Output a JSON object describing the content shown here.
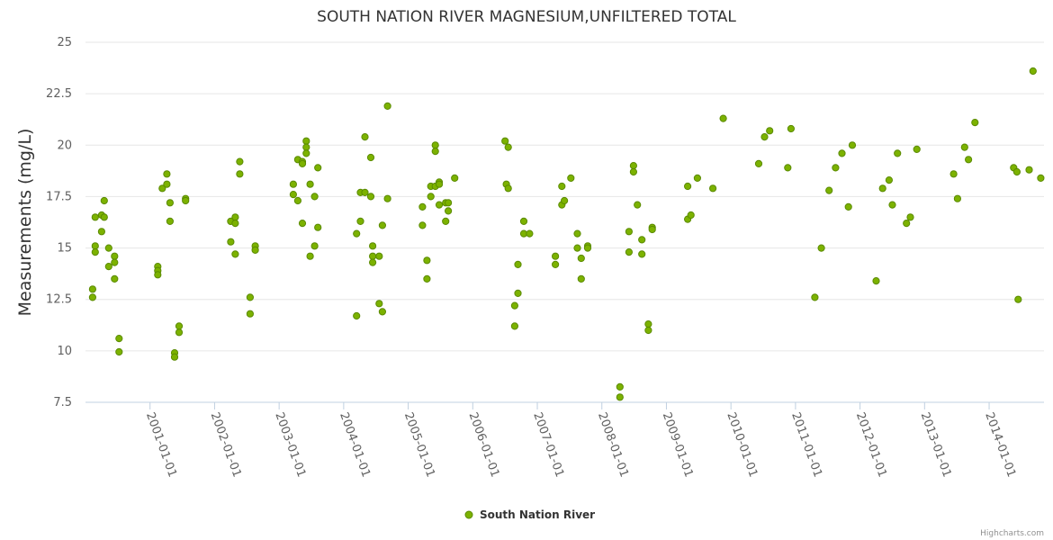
{
  "chart_data": {
    "type": "scatter",
    "title": "SOUTH NATION RIVER MAGNESIUM,UNFILTERED TOTAL",
    "xlabel": "",
    "ylabel": "Measurements (mg/L)",
    "ylim": [
      7.5,
      25
    ],
    "y_ticks": [
      {
        "value": 7.5,
        "label": "7.5"
      },
      {
        "value": 10,
        "label": "10"
      },
      {
        "value": 12.5,
        "label": "12.5"
      },
      {
        "value": 15,
        "label": "15"
      },
      {
        "value": 17.5,
        "label": "17.5"
      },
      {
        "value": 20,
        "label": "20"
      },
      {
        "value": 22.5,
        "label": "22.5"
      },
      {
        "value": 25,
        "label": "25"
      }
    ],
    "xlim": [
      2000.0,
      2014.85
    ],
    "x_ticks": [
      {
        "value": 2001.0,
        "label": "2001-01-01"
      },
      {
        "value": 2002.0,
        "label": "2002-01-01"
      },
      {
        "value": 2003.0,
        "label": "2003-01-01"
      },
      {
        "value": 2004.0,
        "label": "2004-01-01"
      },
      {
        "value": 2005.0,
        "label": "2005-01-01"
      },
      {
        "value": 2006.0,
        "label": "2006-01-01"
      },
      {
        "value": 2007.0,
        "label": "2007-01-01"
      },
      {
        "value": 2008.0,
        "label": "2008-01-01"
      },
      {
        "value": 2009.0,
        "label": "2009-01-01"
      },
      {
        "value": 2010.0,
        "label": "2010-01-01"
      },
      {
        "value": 2011.0,
        "label": "2011-01-01"
      },
      {
        "value": 2012.0,
        "label": "2012-01-01"
      },
      {
        "value": 2013.0,
        "label": "2013-01-01"
      },
      {
        "value": 2014.0,
        "label": "2014-01-01"
      }
    ],
    "grid": true,
    "legend_position": "bottom-center",
    "series": [
      {
        "name": "South Nation River",
        "color": "#7cb200",
        "stroke": "#5a8a00",
        "points": [
          [
            2000.11,
            13.0
          ],
          [
            2000.11,
            12.6
          ],
          [
            2000.15,
            16.5
          ],
          [
            2000.15,
            15.1
          ],
          [
            2000.15,
            14.8
          ],
          [
            2000.25,
            16.6
          ],
          [
            2000.25,
            15.8
          ],
          [
            2000.29,
            16.5
          ],
          [
            2000.29,
            17.3
          ],
          [
            2000.36,
            15.0
          ],
          [
            2000.36,
            14.1
          ],
          [
            2000.45,
            14.6
          ],
          [
            2000.45,
            14.3
          ],
          [
            2000.45,
            13.5
          ],
          [
            2000.52,
            10.6
          ],
          [
            2000.52,
            9.95
          ],
          [
            2001.12,
            14.1
          ],
          [
            2001.12,
            13.9
          ],
          [
            2001.12,
            13.7
          ],
          [
            2001.19,
            17.9
          ],
          [
            2001.26,
            18.6
          ],
          [
            2001.26,
            18.1
          ],
          [
            2001.31,
            17.2
          ],
          [
            2001.31,
            16.3
          ],
          [
            2001.38,
            9.9
          ],
          [
            2001.38,
            9.7
          ],
          [
            2001.45,
            11.2
          ],
          [
            2001.45,
            10.9
          ],
          [
            2001.55,
            17.4
          ],
          [
            2001.55,
            17.3
          ],
          [
            2002.25,
            16.3
          ],
          [
            2002.25,
            15.3
          ],
          [
            2002.32,
            16.5
          ],
          [
            2002.32,
            16.2
          ],
          [
            2002.32,
            14.7
          ],
          [
            2002.39,
            19.2
          ],
          [
            2002.39,
            18.6
          ],
          [
            2002.55,
            12.6
          ],
          [
            2002.55,
            11.8
          ],
          [
            2002.63,
            15.1
          ],
          [
            2002.63,
            14.9
          ],
          [
            2003.22,
            18.1
          ],
          [
            2003.22,
            17.6
          ],
          [
            2003.29,
            19.3
          ],
          [
            2003.29,
            17.3
          ],
          [
            2003.36,
            19.2
          ],
          [
            2003.36,
            19.1
          ],
          [
            2003.36,
            16.2
          ],
          [
            2003.42,
            20.2
          ],
          [
            2003.42,
            19.9
          ],
          [
            2003.42,
            19.6
          ],
          [
            2003.48,
            18.1
          ],
          [
            2003.48,
            14.6
          ],
          [
            2003.55,
            17.5
          ],
          [
            2003.55,
            15.1
          ],
          [
            2003.6,
            18.9
          ],
          [
            2003.6,
            16.0
          ],
          [
            2004.2,
            15.7
          ],
          [
            2004.2,
            11.7
          ],
          [
            2004.26,
            17.7
          ],
          [
            2004.26,
            16.3
          ],
          [
            2004.33,
            20.4
          ],
          [
            2004.33,
            17.7
          ],
          [
            2004.42,
            19.4
          ],
          [
            2004.42,
            17.5
          ],
          [
            2004.45,
            15.1
          ],
          [
            2004.45,
            14.6
          ],
          [
            2004.45,
            14.3
          ],
          [
            2004.55,
            14.6
          ],
          [
            2004.55,
            12.3
          ],
          [
            2004.6,
            16.1
          ],
          [
            2004.6,
            11.9
          ],
          [
            2004.68,
            21.9
          ],
          [
            2004.68,
            17.4
          ],
          [
            2005.22,
            17.0
          ],
          [
            2005.22,
            16.1
          ],
          [
            2005.29,
            14.4
          ],
          [
            2005.29,
            13.5
          ],
          [
            2005.35,
            18.0
          ],
          [
            2005.35,
            17.5
          ],
          [
            2005.42,
            20.0
          ],
          [
            2005.42,
            19.7
          ],
          [
            2005.42,
            18.0
          ],
          [
            2005.48,
            18.2
          ],
          [
            2005.48,
            18.1
          ],
          [
            2005.48,
            17.1
          ],
          [
            2005.58,
            17.2
          ],
          [
            2005.58,
            16.3
          ],
          [
            2005.62,
            17.2
          ],
          [
            2005.62,
            16.8
          ],
          [
            2005.72,
            18.4
          ],
          [
            2006.5,
            20.2
          ],
          [
            2006.55,
            19.9
          ],
          [
            2006.52,
            18.1
          ],
          [
            2006.55,
            17.9
          ],
          [
            2006.65,
            12.2
          ],
          [
            2006.65,
            11.2
          ],
          [
            2006.7,
            14.2
          ],
          [
            2006.7,
            12.8
          ],
          [
            2006.79,
            16.3
          ],
          [
            2006.79,
            15.7
          ],
          [
            2006.88,
            15.7
          ],
          [
            2007.28,
            14.6
          ],
          [
            2007.28,
            14.2
          ],
          [
            2007.38,
            18.0
          ],
          [
            2007.38,
            17.1
          ],
          [
            2007.42,
            17.3
          ],
          [
            2007.52,
            18.4
          ],
          [
            2007.62,
            15.7
          ],
          [
            2007.62,
            15.0
          ],
          [
            2007.68,
            14.5
          ],
          [
            2007.68,
            13.5
          ],
          [
            2007.78,
            15.1
          ],
          [
            2007.78,
            15.0
          ],
          [
            2008.28,
            8.25
          ],
          [
            2008.28,
            7.75
          ],
          [
            2008.42,
            15.8
          ],
          [
            2008.42,
            14.8
          ],
          [
            2008.49,
            19.0
          ],
          [
            2008.49,
            18.7
          ],
          [
            2008.55,
            17.1
          ],
          [
            2008.62,
            15.4
          ],
          [
            2008.62,
            14.7
          ],
          [
            2008.72,
            11.3
          ],
          [
            2008.72,
            11.0
          ],
          [
            2008.78,
            16.0
          ],
          [
            2008.78,
            15.9
          ],
          [
            2009.33,
            18.0
          ],
          [
            2009.33,
            16.4
          ],
          [
            2009.38,
            16.6
          ],
          [
            2009.48,
            18.4
          ],
          [
            2009.72,
            17.9
          ],
          [
            2009.88,
            21.3
          ],
          [
            2010.43,
            19.1
          ],
          [
            2010.52,
            20.4
          ],
          [
            2010.6,
            20.7
          ],
          [
            2010.88,
            18.9
          ],
          [
            2010.93,
            20.8
          ],
          [
            2011.3,
            12.6
          ],
          [
            2011.4,
            15.0
          ],
          [
            2011.52,
            17.8
          ],
          [
            2011.62,
            18.9
          ],
          [
            2011.72,
            19.6
          ],
          [
            2011.82,
            17.0
          ],
          [
            2011.88,
            20.0
          ],
          [
            2012.25,
            13.4
          ],
          [
            2012.35,
            17.9
          ],
          [
            2012.45,
            18.3
          ],
          [
            2012.5,
            17.1
          ],
          [
            2012.58,
            19.6
          ],
          [
            2012.72,
            16.2
          ],
          [
            2012.78,
            16.5
          ],
          [
            2012.88,
            19.8
          ],
          [
            2013.45,
            18.6
          ],
          [
            2013.51,
            17.4
          ],
          [
            2013.62,
            19.9
          ],
          [
            2013.68,
            19.3
          ],
          [
            2013.78,
            21.1
          ],
          [
            2014.38,
            18.9
          ],
          [
            2014.43,
            18.7
          ],
          [
            2014.45,
            12.5
          ],
          [
            2014.62,
            18.8
          ],
          [
            2014.68,
            23.6
          ],
          [
            2014.8,
            18.4
          ]
        ]
      }
    ]
  },
  "credits": "Highcharts.com"
}
